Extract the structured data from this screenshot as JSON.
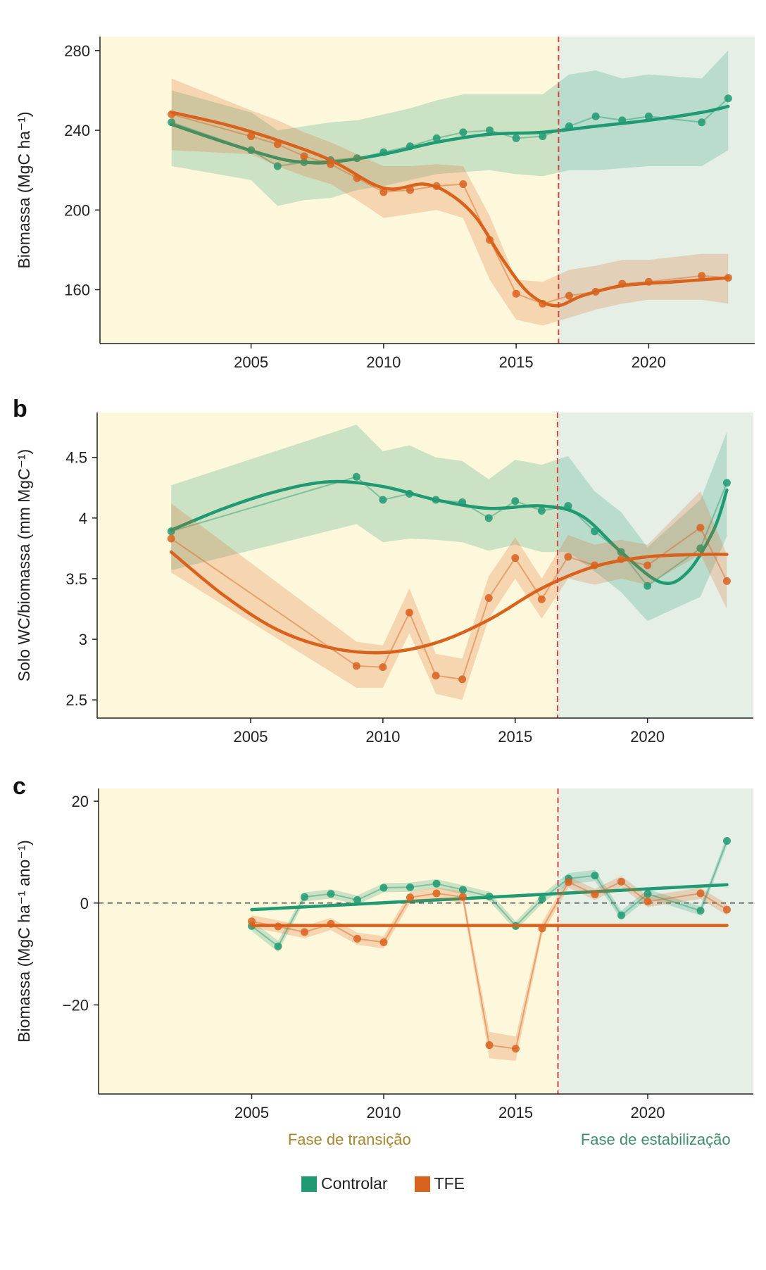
{
  "colors": {
    "control": "#1f9a72",
    "tfe": "#d9621d",
    "transition_bg": "#fdf7dc",
    "stabilization_bg": "#e5efe6",
    "divider": "#d9453f",
    "transition_text": "#a7872b",
    "stabilization_text": "#3f8f6b"
  },
  "legend": [
    {
      "label": "Controlar",
      "series": "control"
    },
    {
      "label": "TFE",
      "series": "tfe"
    }
  ],
  "phases": {
    "transition_label": "Fase de transição",
    "stabilization_label": "Fase de estabilização",
    "divider_year": 2016.6
  },
  "chart_data": [
    {
      "id": "a",
      "panel_letter": "",
      "type": "line",
      "ylabel": "Biomassa (MgC ha⁻¹)",
      "xlim": [
        1999.3,
        2024.0
      ],
      "ylim": [
        133,
        287
      ],
      "xticks": [
        2005,
        2010,
        2015,
        2020
      ],
      "yticks": [
        160,
        200,
        240,
        280
      ],
      "series": [
        {
          "name": "Controlar",
          "key": "control",
          "x": [
            2002,
            2005,
            2006,
            2007,
            2008,
            2009,
            2010,
            2011,
            2012,
            2013,
            2014,
            2015,
            2016,
            2017,
            2018,
            2019,
            2020,
            2022,
            2023
          ],
          "y": [
            244,
            230,
            222,
            224,
            225,
            226,
            229,
            232,
            236,
            239,
            240,
            236,
            237,
            242,
            247,
            245,
            247,
            244,
            256
          ],
          "lower": [
            222,
            215,
            202,
            205,
            206,
            210,
            212,
            215,
            218,
            219,
            220,
            218,
            217,
            220,
            220,
            221,
            222,
            222,
            230
          ],
          "upper": [
            260,
            249,
            240,
            242,
            244,
            245,
            248,
            251,
            255,
            258,
            258,
            258,
            258,
            268,
            270,
            266,
            268,
            266,
            280
          ],
          "smooth_x": [
            2002,
            2004,
            2006,
            2007,
            2008,
            2010,
            2012,
            2014,
            2016,
            2018,
            2020,
            2022,
            2023
          ],
          "smooth_y": [
            243,
            234,
            226,
            224,
            224,
            228,
            234,
            238,
            239,
            242,
            245,
            249,
            252
          ]
        },
        {
          "name": "TFE",
          "key": "tfe",
          "x": [
            2002,
            2005,
            2006,
            2007,
            2008,
            2009,
            2010,
            2011,
            2012,
            2013,
            2014,
            2015,
            2016,
            2017,
            2018,
            2019,
            2020,
            2022,
            2023
          ],
          "y": [
            248,
            237,
            233,
            227,
            223,
            216,
            209,
            210,
            212,
            213,
            185,
            158,
            153,
            157,
            159,
            163,
            164,
            167,
            166
          ],
          "lower": [
            230,
            228,
            222,
            217,
            213,
            205,
            196,
            198,
            200,
            196,
            165,
            145,
            142,
            146,
            150,
            153,
            155,
            155,
            153
          ],
          "upper": [
            266,
            250,
            245,
            239,
            234,
            228,
            222,
            222,
            223,
            222,
            197,
            165,
            164,
            170,
            172,
            175,
            175,
            178,
            178
          ],
          "smooth_x": [
            2002,
            2004,
            2006,
            2008,
            2010,
            2011.5,
            2012.5,
            2013.5,
            2014.5,
            2015.5,
            2016.5,
            2017.5,
            2019,
            2021,
            2023
          ],
          "smooth_y": [
            249,
            243,
            235,
            225,
            211,
            213,
            208,
            196,
            175,
            158,
            152,
            157,
            162,
            164,
            166
          ]
        }
      ]
    },
    {
      "id": "b",
      "panel_letter": "b",
      "type": "line",
      "ylabel": "Solo WC/biomassa (mm MgC⁻¹)",
      "xlim": [
        1999.2,
        2024.0
      ],
      "ylim": [
        2.35,
        4.87
      ],
      "xticks": [
        2005,
        2010,
        2015,
        2020
      ],
      "yticks": [
        2.5,
        3.0,
        3.5,
        4.0,
        4.5
      ],
      "series": [
        {
          "name": "Controlar",
          "key": "control",
          "x": [
            2002,
            2009,
            2010,
            2011,
            2012,
            2013,
            2014,
            2015,
            2016,
            2017,
            2018,
            2019,
            2020,
            2022,
            2023
          ],
          "y": [
            3.89,
            4.34,
            4.15,
            4.2,
            4.15,
            4.13,
            4.0,
            4.14,
            4.06,
            4.1,
            3.89,
            3.72,
            3.44,
            3.75,
            4.29
          ],
          "lower": [
            3.57,
            3.95,
            3.8,
            3.83,
            3.82,
            3.8,
            3.73,
            3.78,
            3.72,
            3.72,
            3.56,
            3.39,
            3.15,
            3.35,
            3.85
          ],
          "upper": [
            4.27,
            4.77,
            4.55,
            4.6,
            4.5,
            4.47,
            4.32,
            4.48,
            4.44,
            4.51,
            4.22,
            4.05,
            3.76,
            4.15,
            4.71
          ],
          "smooth_x": [
            2002,
            2004,
            2006,
            2008,
            2010,
            2012,
            2014,
            2016,
            2017.5,
            2019,
            2020.5,
            2021.5,
            2022.5,
            2023
          ],
          "smooth_y": [
            3.9,
            4.08,
            4.22,
            4.3,
            4.26,
            4.15,
            4.08,
            4.1,
            4.02,
            3.72,
            3.47,
            3.55,
            3.9,
            4.23
          ]
        },
        {
          "name": "TFE",
          "key": "tfe",
          "x": [
            2002,
            2009,
            2010,
            2011,
            2012,
            2013,
            2014,
            2015,
            2016,
            2017,
            2018,
            2019,
            2020,
            2022,
            2023
          ],
          "y": [
            3.83,
            2.78,
            2.77,
            3.22,
            2.7,
            2.67,
            3.34,
            3.67,
            3.33,
            3.68,
            3.61,
            3.66,
            3.61,
            3.92,
            3.48
          ],
          "lower": [
            3.55,
            2.6,
            2.6,
            3.05,
            2.55,
            2.5,
            3.17,
            3.5,
            3.17,
            3.5,
            3.45,
            3.5,
            3.45,
            3.7,
            3.25
          ],
          "upper": [
            4.12,
            2.98,
            2.95,
            3.42,
            2.88,
            2.84,
            3.52,
            3.84,
            3.5,
            3.86,
            3.78,
            3.82,
            3.78,
            4.22,
            3.7
          ],
          "smooth_x": [
            2002,
            2004,
            2006,
            2008,
            2010,
            2012,
            2014,
            2016,
            2018,
            2020,
            2022,
            2023
          ],
          "smooth_y": [
            3.72,
            3.36,
            3.08,
            2.93,
            2.89,
            2.97,
            3.16,
            3.42,
            3.6,
            3.68,
            3.7,
            3.7
          ]
        }
      ]
    },
    {
      "id": "c",
      "panel_letter": "c",
      "type": "line",
      "ylabel": "Biomassa (MgC ha⁻¹ ano⁻¹)",
      "xlim": [
        1999.2,
        2024.0
      ],
      "ylim": [
        -37.5,
        22.5
      ],
      "xticks": [
        2005,
        2010,
        2015,
        2020
      ],
      "yticks": [
        -20,
        0,
        20
      ],
      "zero_line": true,
      "series": [
        {
          "name": "Controlar",
          "key": "control",
          "x": [
            2005,
            2006,
            2007,
            2008,
            2009,
            2010,
            2011,
            2012,
            2013,
            2014,
            2015,
            2016,
            2017,
            2018,
            2019,
            2020,
            2022,
            2023
          ],
          "y": [
            -4.5,
            -8.5,
            1.2,
            1.8,
            0.6,
            3.0,
            3.1,
            3.8,
            2.6,
            1.3,
            -4.5,
            0.8,
            4.8,
            5.4,
            -2.4,
            1.8,
            -1.5,
            12.2
          ],
          "lower": [
            -5.5,
            -9.6,
            0.3,
            0.9,
            -0.3,
            2.1,
            2.2,
            2.9,
            1.7,
            0.4,
            -5.4,
            -0.1,
            3.7,
            4.3,
            -3.3,
            0.9,
            -2.4,
            11.2
          ],
          "upper": [
            -3.5,
            -7.4,
            2.1,
            2.7,
            1.5,
            3.9,
            4.0,
            4.7,
            3.5,
            2.2,
            -3.6,
            1.7,
            5.9,
            6.5,
            -1.5,
            2.7,
            -0.6,
            13.2
          ],
          "trend_x": [
            2005,
            2023
          ],
          "trend_y": [
            -1.3,
            3.6
          ]
        },
        {
          "name": "TFE",
          "key": "tfe",
          "x": [
            2005,
            2006,
            2007,
            2008,
            2009,
            2010,
            2011,
            2012,
            2013,
            2014,
            2015,
            2016,
            2017,
            2018,
            2019,
            2020,
            2022,
            2023
          ],
          "y": [
            -3.6,
            -4.6,
            -5.7,
            -4.1,
            -7.0,
            -7.7,
            1.1,
            1.9,
            1.2,
            -27.9,
            -28.6,
            -5.0,
            4.1,
            1.7,
            4.2,
            0.3,
            1.9,
            -1.3
          ],
          "lower": [
            -4.8,
            -5.8,
            -6.9,
            -5.3,
            -8.2,
            -8.9,
            0.0,
            0.8,
            0.0,
            -30.5,
            -31.0,
            -6.2,
            3.0,
            0.6,
            3.1,
            -0.8,
            0.8,
            -2.4
          ],
          "upper": [
            -2.4,
            -3.4,
            -4.5,
            -2.9,
            -5.8,
            -6.5,
            2.2,
            3.0,
            2.4,
            -25.3,
            -26.2,
            -3.8,
            5.2,
            2.8,
            5.3,
            1.4,
            3.0,
            -0.2
          ],
          "trend_x": [
            2005,
            2023
          ],
          "trend_y": [
            -4.4,
            -4.4
          ]
        }
      ]
    }
  ]
}
